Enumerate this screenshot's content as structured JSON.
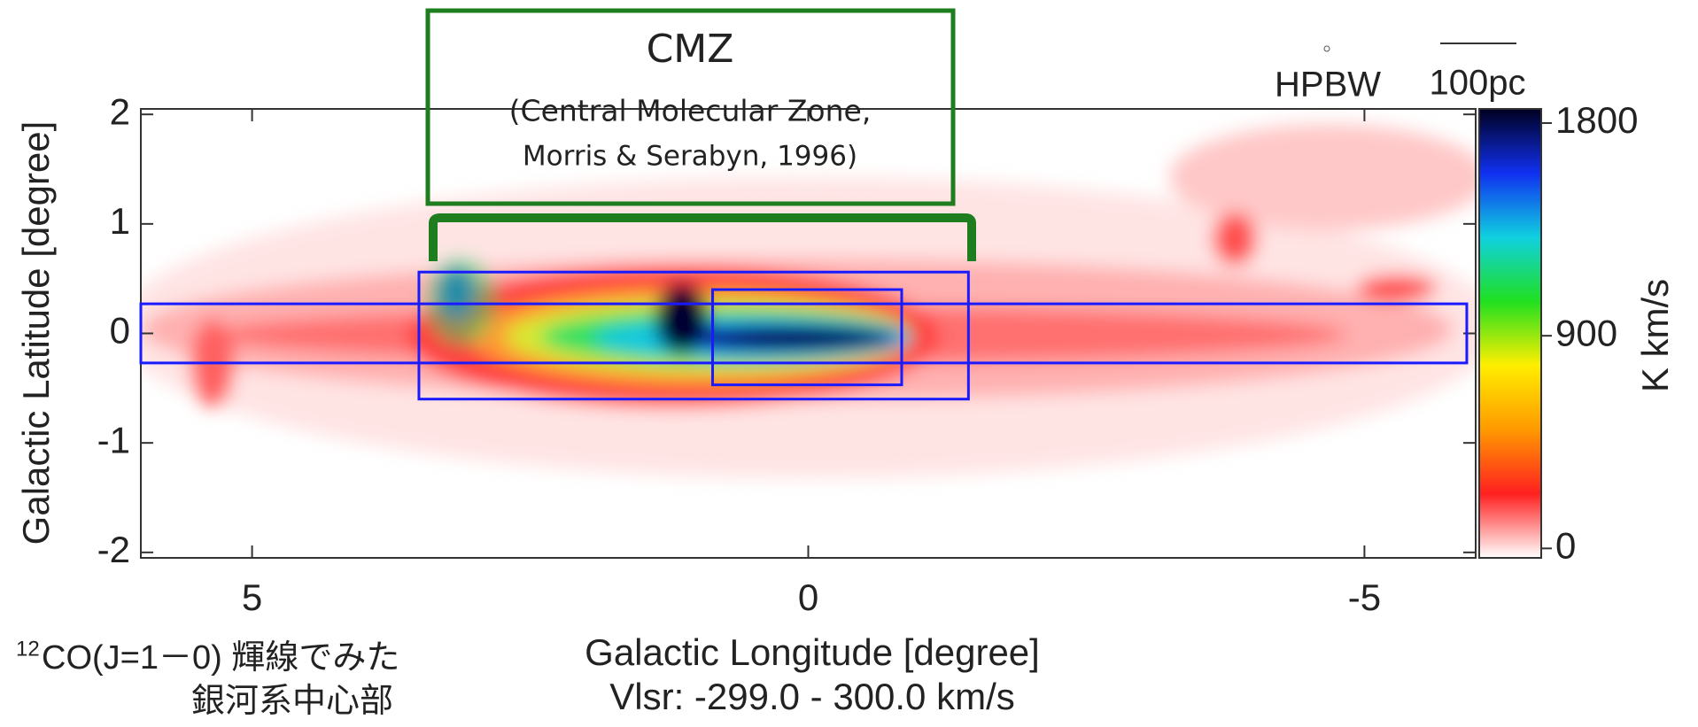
{
  "chart_data": {
    "type": "image",
    "x_label": "Galactic Longitude [degree]",
    "y_label": "Galactic Latitude [degree]",
    "subtitle": "Vlsr: -299.0 - 300.0 km/s",
    "xlim": [
      6,
      -6
    ],
    "xticks": [
      5,
      0,
      -5
    ],
    "ylim": [
      -2.05,
      2.05
    ],
    "yticks": [
      2,
      1,
      0,
      -1,
      -2
    ],
    "colorbar": {
      "label": "K km/s",
      "clim": [
        -40,
        1860
      ],
      "ticks": [
        1800,
        900,
        0
      ],
      "colors": [
        "#ffffff",
        "#ff2020",
        "#ff9900",
        "#ffee00",
        "#20e020",
        "#10d0e0",
        "#1030f0",
        "#000020"
      ]
    },
    "beam_label": "HPBW",
    "scale_label": "100pc",
    "regions": [
      {
        "lon": [
          6,
          -5.92
        ],
        "lat": [
          0.27,
          -0.27
        ],
        "color": "#1a1aff"
      },
      {
        "lon": [
          3.5,
          -1.44
        ],
        "lat": [
          0.56,
          -0.6
        ],
        "color": "#1a1aff"
      },
      {
        "lon": [
          0.86,
          -0.84
        ],
        "lat": [
          0.4,
          -0.47
        ],
        "color": "#1a1aff"
      }
    ],
    "callout": {
      "title": "CMZ",
      "lines": [
        "(Central Molecular Zone,",
        "Morris & Serabyn, 1996)"
      ],
      "color": "#1e7d1e"
    },
    "caption": {
      "superscript": "12",
      "line1": "CO(J=1－0) 輝線でみた",
      "line2": "銀河系中心部"
    }
  }
}
